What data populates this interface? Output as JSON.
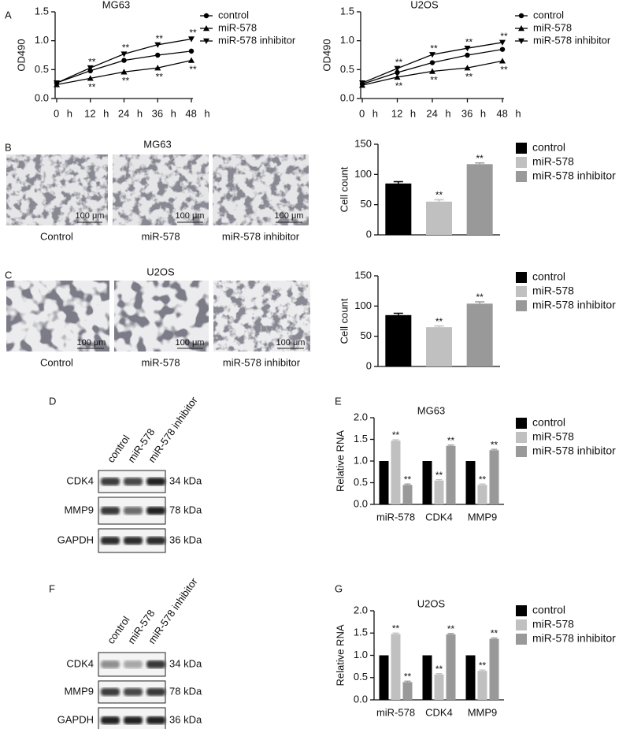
{
  "panel_labels": [
    "A",
    "B",
    "C",
    "D",
    "E",
    "F",
    "G"
  ],
  "micrographs": [
    {
      "title": "MG63",
      "captions": [
        "Control",
        "miR-578",
        "miR-578 inhibitor"
      ],
      "scale_bar": "100 μm"
    },
    {
      "title": "U2OS",
      "captions": [
        "Control",
        "miR-578",
        "miR-578 inhibitor"
      ],
      "scale_bar": "100 μm"
    }
  ],
  "blots": [
    {
      "columns": [
        "control",
        "miR-578",
        "miR-578 inhibitor"
      ],
      "rows": [
        {
          "protein": "CDK4",
          "size": "34 kDa"
        },
        {
          "protein": "MMP9",
          "size": "78 kDa"
        },
        {
          "protein": "GAPDH",
          "size": "36 kDa"
        }
      ]
    },
    {
      "columns": [
        "control",
        "miR-578",
        "miR-578 inhibitor"
      ],
      "rows": [
        {
          "protein": "CDK4",
          "size": "34 kDa"
        },
        {
          "protein": "MMP9",
          "size": "78 kDa"
        },
        {
          "protein": "GAPDH",
          "size": "36 kDa"
        }
      ]
    }
  ],
  "chart_data": [
    {
      "type": "line",
      "title": "MG63",
      "y_label": "OD490",
      "categories": [
        "0 h",
        "12 h",
        "24 h",
        "36 h",
        "48 h"
      ],
      "ylim": [
        0,
        1.5
      ],
      "yticks": [
        {
          "value": 0,
          "label": "0.0"
        },
        0.5,
        {
          "value": 1,
          "label": "1.0"
        },
        1.5
      ],
      "series": [
        {
          "name": "control",
          "color": "#000000",
          "marker": "circle",
          "values": [
            0.27,
            0.48,
            0.66,
            0.75,
            0.82
          ]
        },
        {
          "name": "miR-578",
          "color": "#000000",
          "marker": "triangle-up",
          "values": [
            0.24,
            0.35,
            0.46,
            0.53,
            0.66
          ],
          "labels": [
            null,
            "**",
            "**",
            "**",
            "**"
          ],
          "label_position": "below"
        },
        {
          "name": "miR-578 inhibitor",
          "color": "#000000",
          "marker": "triangle-down",
          "values": [
            0.27,
            0.53,
            0.77,
            0.93,
            1.03
          ],
          "labels": [
            null,
            "**",
            "**",
            "**",
            "**"
          ],
          "label_position": "above"
        }
      ]
    },
    {
      "type": "line",
      "title": "U2OS",
      "y_label": "OD490",
      "categories": [
        "0 h",
        "12 h",
        "24 h",
        "36 h",
        "48 h"
      ],
      "ylim": [
        0,
        1.5
      ],
      "yticks": [
        {
          "value": 0,
          "label": "0.0"
        },
        0.5,
        {
          "value": 1,
          "label": "1.0"
        },
        1.5
      ],
      "series": [
        {
          "name": "control",
          "color": "#000000",
          "marker": "circle",
          "values": [
            0.25,
            0.45,
            0.62,
            0.75,
            0.85
          ]
        },
        {
          "name": "miR-578",
          "color": "#000000",
          "marker": "triangle-up",
          "values": [
            0.23,
            0.37,
            0.47,
            0.53,
            0.65
          ],
          "labels": [
            null,
            "**",
            "**",
            "**",
            "**"
          ],
          "label_position": "below"
        },
        {
          "name": "miR-578 inhibitor",
          "color": "#000000",
          "marker": "triangle-down",
          "values": [
            0.27,
            0.52,
            0.76,
            0.87,
            0.97
          ],
          "labels": [
            null,
            "**",
            "**",
            "**",
            "**"
          ],
          "label_position": "above"
        }
      ]
    },
    {
      "type": "bar",
      "y_label": "Cell count",
      "categories": [
        "control",
        "miR-578",
        "miR-578 inhibitor"
      ],
      "values": [
        85,
        55,
        117
      ],
      "errors": [
        3,
        3,
        2
      ],
      "labels": [
        null,
        "**",
        "**"
      ],
      "colors": [
        "#000000",
        "#c0c0c0",
        "#999999"
      ],
      "ylim": [
        0,
        150
      ],
      "yticks": [
        0,
        50,
        100,
        150
      ]
    },
    {
      "type": "bar",
      "y_label": "Cell count",
      "categories": [
        "control",
        "miR-578",
        "miR-578 inhibitor"
      ],
      "values": [
        85,
        65,
        104
      ],
      "errors": [
        3,
        2,
        3
      ],
      "labels": [
        null,
        "**",
        "**"
      ],
      "colors": [
        "#000000",
        "#c0c0c0",
        "#999999"
      ],
      "ylim": [
        0,
        150
      ],
      "yticks": [
        0,
        50,
        100,
        150
      ]
    },
    {
      "type": "grouped_bar",
      "title": "MG63",
      "y_label": "Relative RNA",
      "categories": [
        "miR-578",
        "CDK4",
        "MMP9"
      ],
      "ylim": [
        0,
        2
      ],
      "yticks": [
        {
          "value": 0,
          "label": "0.0"
        },
        0.5,
        {
          "value": 1,
          "label": "1.0"
        },
        1.5,
        {
          "value": 2,
          "label": "2.0"
        }
      ],
      "series": [
        {
          "name": "control",
          "color": "#000000",
          "values": [
            1,
            1,
            1
          ]
        },
        {
          "name": "miR-578",
          "color": "#c0c0c0",
          "values": [
            1.47,
            0.55,
            0.45
          ],
          "errors": [
            0.02,
            0.02,
            0.02
          ],
          "labels": [
            "**",
            "**",
            "**"
          ]
        },
        {
          "name": "miR-578 inhibitor",
          "color": "#999999",
          "values": [
            0.45,
            1.35,
            1.25
          ],
          "errors": [
            0.02,
            0.02,
            0.02
          ],
          "labels": [
            "**",
            "**",
            "**"
          ]
        }
      ]
    },
    {
      "type": "grouped_bar",
      "title": "U2OS",
      "y_label": "Relative RNA",
      "categories": [
        "miR-578",
        "CDK4",
        "MMP9"
      ],
      "ylim": [
        0,
        2
      ],
      "yticks": [
        {
          "value": 0,
          "label": "0.0"
        },
        0.5,
        {
          "value": 1,
          "label": "1.0"
        },
        1.5,
        {
          "value": 2,
          "label": "2.0"
        }
      ],
      "series": [
        {
          "name": "control",
          "color": "#000000",
          "values": [
            1,
            1,
            1
          ]
        },
        {
          "name": "miR-578",
          "color": "#c0c0c0",
          "values": [
            1.48,
            0.57,
            0.65
          ],
          "errors": [
            0.02,
            0.02,
            0.02
          ],
          "labels": [
            "**",
            "**",
            "**"
          ]
        },
        {
          "name": "miR-578 inhibitor",
          "color": "#999999",
          "values": [
            0.4,
            1.47,
            1.37
          ],
          "errors": [
            0.02,
            0.02,
            0.02
          ],
          "labels": [
            "**",
            "**",
            "**"
          ]
        }
      ]
    }
  ]
}
